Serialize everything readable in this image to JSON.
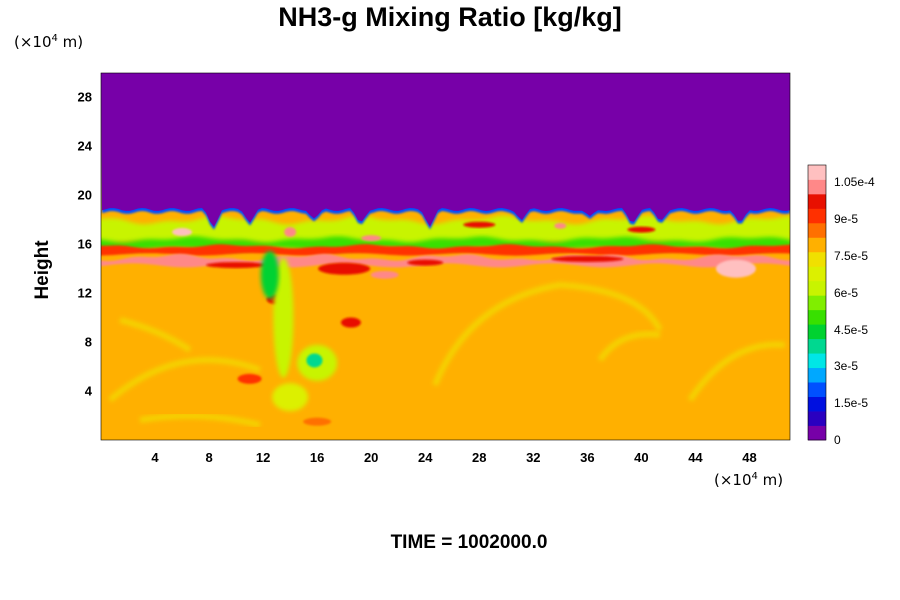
{
  "chart_data": {
    "type": "heatmap",
    "title": "NH3-g Mixing Ratio [kg/kg]",
    "ylabel": "Height",
    "y_unit": "(×10⁴ m)",
    "x_unit": "(×10⁴ m)",
    "x_unit_parts": {
      "prefix": "(×10",
      "exp": "4",
      "suffix": " m)"
    },
    "y_unit_parts": {
      "prefix": "(×10",
      "exp": "4",
      "suffix": " m)"
    },
    "xlim": [
      0,
      51
    ],
    "ylim": [
      0,
      30
    ],
    "x_ticks": [
      4,
      8,
      12,
      16,
      20,
      24,
      28,
      32,
      36,
      40,
      44,
      48
    ],
    "y_ticks": [
      4,
      8,
      12,
      16,
      20,
      24,
      28
    ],
    "colorbar": {
      "min": 0,
      "max": 0.000112,
      "tick_values": [
        0,
        1.5e-05,
        3e-05,
        4.5e-05,
        6e-05,
        7.5e-05,
        9e-05,
        0.000105
      ],
      "tick_labels": [
        "0",
        "1.5e-5",
        "3e-5",
        "4.5e-5",
        "6e-5",
        "7.5e-5",
        "9e-5",
        "1.05e-4"
      ],
      "colors": [
        "#7700a8",
        "#2a00c0",
        "#0010e0",
        "#0050ff",
        "#00a8ff",
        "#00e6e6",
        "#00d890",
        "#00d230",
        "#38e000",
        "#80ee00",
        "#c8f400",
        "#dcf000",
        "#f0e000",
        "#ffb000",
        "#ff7000",
        "#ff3000",
        "#e81000",
        "#ff8888",
        "#ffc0c0"
      ]
    },
    "field_description": {
      "background_value": 7.85e-05,
      "upper_layer_value": 0,
      "interface_height": 18.6,
      "bands": [
        {
          "y": 17.2,
          "value": 6.5e-05
        },
        {
          "y": 15.6,
          "value": 5.8e-05
        },
        {
          "y": 14.4,
          "value": 0.0001
        }
      ]
    }
  },
  "footer": {
    "time_label": "TIME = 1002000.0"
  }
}
